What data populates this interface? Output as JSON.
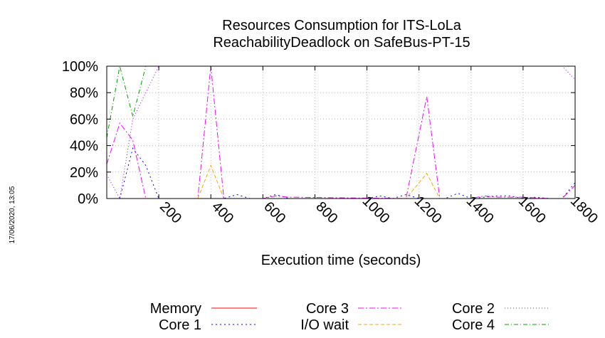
{
  "chart_data": {
    "type": "line",
    "title_lines": [
      "Resources Consumption for ITS-LoLa",
      "ReachabilityDeadlock on SafeBus-PT-15"
    ],
    "xlabel": "Execution time (seconds)",
    "ylabel": "",
    "xlim": [
      0,
      1800
    ],
    "ylim": [
      0,
      100
    ],
    "x_ticks": [
      200,
      400,
      600,
      800,
      1000,
      1200,
      1400,
      1600,
      1800
    ],
    "y_ticks": [
      0,
      20,
      40,
      60,
      80,
      100
    ],
    "y_tick_labels": [
      "0%",
      "20%",
      "40%",
      "60%",
      "80%",
      "100%"
    ],
    "grid": true,
    "legend_position": "bottom",
    "timestamp": "17/06/2020, 13:05",
    "series": [
      {
        "name": "Memory",
        "color": "#ff0000",
        "dash": "",
        "x": [
          0,
          1800
        ],
        "y": [
          0,
          0
        ]
      },
      {
        "name": "I/O wait",
        "color": "#ffa500",
        "dash": "5,3",
        "x": [
          0,
          350,
          400,
          450,
          1150,
          1230,
          1280,
          1800
        ],
        "y": [
          0,
          0,
          25,
          0,
          0,
          19,
          0,
          0
        ]
      },
      {
        "name": "Core 1",
        "color": "#0000ff",
        "dash": "2,4",
        "x": [
          0,
          50,
          100,
          150,
          200,
          450,
          500,
          550,
          600,
          650,
          700,
          1000,
          1050,
          1100,
          1150,
          1200,
          1250,
          1300,
          1350,
          1400,
          1450,
          1500,
          1550,
          1600,
          1650,
          1700,
          1750,
          1800
        ],
        "y": [
          0,
          0,
          38,
          25,
          0,
          0,
          3,
          0,
          0,
          3,
          0,
          0,
          2,
          0,
          3,
          0,
          0,
          0,
          4,
          0,
          1,
          2,
          2,
          0,
          1,
          0,
          0,
          12
        ]
      },
      {
        "name": "Core 2",
        "color": "#a000ff",
        "dash": "1,3",
        "x": [
          0,
          50,
          100,
          150,
          200,
          1750,
          1800
        ],
        "y": [
          18,
          0,
          60,
          80,
          100,
          100,
          90
        ]
      },
      {
        "name": "Core 3",
        "color": "#ff00ff",
        "dash": "8,3,2,3",
        "x": [
          0,
          50,
          100,
          150,
          350,
          400,
          450,
          600,
          650,
          700,
          1150,
          1230,
          1280,
          1400,
          1450,
          1500,
          1600,
          1700,
          1750,
          1800
        ],
        "y": [
          26,
          57,
          44,
          0,
          0,
          100,
          0,
          0,
          2,
          1,
          0,
          77,
          0,
          0,
          2,
          1,
          1,
          0,
          0,
          10
        ]
      },
      {
        "name": "Core 4",
        "color": "#00a000",
        "dash": "6,3,1,3",
        "x": [
          0,
          50,
          100,
          150,
          200,
          1800
        ],
        "y": [
          46,
          100,
          62,
          100,
          100,
          100
        ]
      }
    ]
  }
}
